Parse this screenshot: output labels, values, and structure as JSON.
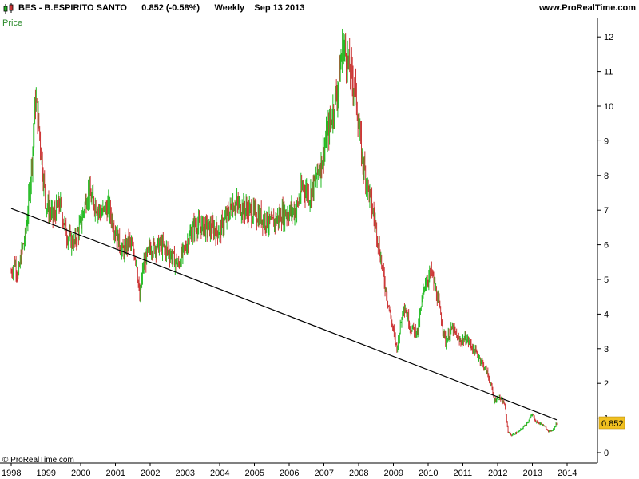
{
  "header": {
    "symbol": "BES",
    "name": "B.ESPIRITO SANTO",
    "last": "0.852",
    "change": "(-0.58%)",
    "period": "Weekly",
    "date": "Sep 13 2013",
    "site": "www.ProRealTime.com"
  },
  "footer": {
    "copyright": "© ProRealTime.com"
  },
  "colors": {
    "up": "#22bb22",
    "down": "#cc3333",
    "trendline": "#000000",
    "last_badge": "#f0c020"
  },
  "chart_data": {
    "type": "line",
    "price_label": "Price",
    "x_ticks": [
      "1998",
      "1999",
      "2000",
      "2001",
      "2002",
      "2003",
      "2004",
      "2005",
      "2006",
      "2007",
      "2008",
      "2009",
      "2010",
      "2011",
      "2012",
      "2013",
      "2014"
    ],
    "y_ticks": [
      0,
      1,
      2,
      3,
      4,
      5,
      6,
      7,
      8,
      9,
      10,
      11,
      12
    ],
    "xlim": [
      1997.98,
      2014.0
    ],
    "ylim": [
      0,
      12.2
    ],
    "last_value": "0.852",
    "series": [
      {
        "x": [
          1998.0,
          1998.1,
          1998.2,
          1998.3,
          1998.4,
          1998.5,
          1998.6,
          1998.7,
          1998.8,
          1998.9,
          1999.0,
          1999.2,
          1999.4,
          1999.6,
          1999.8,
          2000.0,
          2000.2,
          2000.4,
          2000.6,
          2000.8,
          2001.0,
          2001.2,
          2001.4,
          2001.6,
          2001.7,
          2001.8,
          2002.0,
          2002.3,
          2002.6,
          2002.8,
          2003.0,
          2003.3,
          2003.6,
          2004.0,
          2004.4,
          2004.8,
          2005.2,
          2005.5,
          2005.8,
          2006.2,
          2006.4,
          2006.6,
          2006.9,
          2007.2,
          2007.4,
          2007.55,
          2007.7,
          2007.9,
          2008.1,
          2008.3,
          2008.5,
          2008.7,
          2008.9,
          2009.1,
          2009.3,
          2009.5,
          2009.7,
          2009.9,
          2010.1,
          2010.3,
          2010.5,
          2010.7,
          2010.9,
          2011.1,
          2011.3,
          2011.5,
          2011.7,
          2011.8,
          2011.9,
          2012.05,
          2012.2,
          2012.3,
          2012.4,
          2012.6,
          2012.8,
          2013.0,
          2013.1,
          2013.3,
          2013.5,
          2013.62,
          2013.7
        ],
        "y": [
          5.2,
          5.5,
          5.1,
          5.8,
          6.2,
          7.2,
          8.5,
          10.2,
          9.4,
          8.2,
          7.2,
          6.8,
          7.2,
          6.3,
          6.0,
          6.6,
          7.5,
          7.2,
          6.9,
          7.1,
          6.4,
          5.8,
          6.1,
          5.6,
          4.4,
          5.4,
          5.9,
          6.0,
          5.7,
          5.4,
          5.9,
          6.6,
          6.5,
          6.4,
          7.2,
          7.0,
          6.8,
          6.6,
          6.9,
          7.0,
          7.7,
          7.4,
          8.3,
          9.6,
          10.5,
          11.8,
          11.2,
          10.5,
          8.5,
          7.5,
          6.5,
          5.2,
          4.0,
          3.0,
          4.3,
          3.6,
          3.5,
          4.9,
          5.2,
          4.3,
          3.2,
          3.6,
          3.2,
          3.3,
          3.0,
          2.7,
          2.3,
          2.0,
          1.5,
          1.6,
          1.4,
          0.6,
          0.5,
          0.6,
          0.8,
          1.1,
          0.9,
          0.8,
          0.6,
          0.7,
          0.852
        ]
      }
    ],
    "trendline": {
      "x": [
        1998.0,
        2013.7
      ],
      "y": [
        7.05,
        0.95
      ]
    }
  }
}
